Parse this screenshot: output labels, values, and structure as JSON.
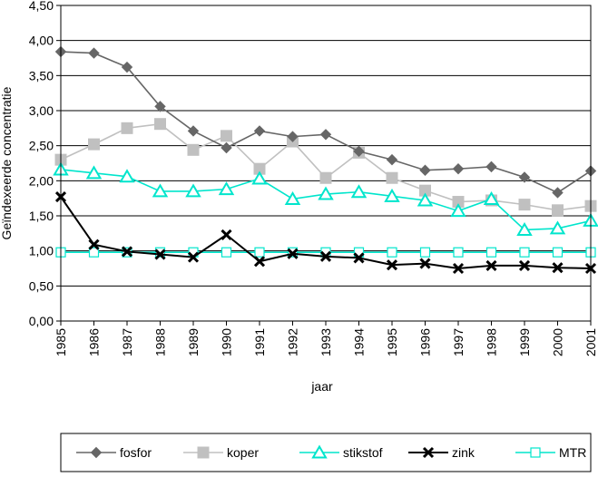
{
  "chart_data": {
    "type": "line",
    "title": "",
    "xlabel": "jaar",
    "ylabel": "Geïndexeerde concentratie",
    "ylim": [
      0,
      4.5
    ],
    "yticks": [
      "0,00",
      "0,50",
      "1,00",
      "1,50",
      "2,00",
      "2,50",
      "3,00",
      "3,50",
      "4,00",
      "4,50"
    ],
    "grid": "horizontal",
    "legend_position": "bottom",
    "categories": [
      "1985",
      "1986",
      "1987",
      "1988",
      "1989",
      "1990",
      "1991",
      "1992",
      "1993",
      "1994",
      "1995",
      "1996",
      "1997",
      "1998",
      "1999",
      "2000",
      "2001"
    ],
    "series": [
      {
        "name": "fosfor",
        "color": "#666666",
        "marker": "diamond",
        "values": [
          3.84,
          3.82,
          3.62,
          3.06,
          2.71,
          2.47,
          2.71,
          2.63,
          2.66,
          2.42,
          2.3,
          2.15,
          2.17,
          2.2,
          2.05,
          1.83,
          2.14
        ]
      },
      {
        "name": "koper",
        "color": "#c0c0c0",
        "marker": "square",
        "values": [
          2.3,
          2.52,
          2.75,
          2.81,
          2.44,
          2.64,
          2.17,
          2.56,
          2.04,
          2.4,
          2.04,
          1.86,
          1.7,
          1.72,
          1.66,
          1.58,
          1.64
        ]
      },
      {
        "name": "stikstof",
        "color": "#00e5cc",
        "marker": "triangle",
        "values": [
          2.16,
          2.11,
          2.06,
          1.85,
          1.85,
          1.88,
          2.03,
          1.74,
          1.81,
          1.84,
          1.78,
          1.72,
          1.57,
          1.74,
          1.3,
          1.32,
          1.43
        ]
      },
      {
        "name": "zink",
        "color": "#000000",
        "marker": "x",
        "values": [
          1.77,
          1.09,
          0.99,
          0.95,
          0.91,
          1.23,
          0.85,
          0.96,
          0.92,
          0.9,
          0.8,
          0.82,
          0.75,
          0.79,
          0.79,
          0.76,
          0.75
        ]
      },
      {
        "name": "MTR",
        "color": "#00e5cc",
        "marker": "open-square",
        "values": [
          0.98,
          0.98,
          0.98,
          0.98,
          0.98,
          0.98,
          0.98,
          0.98,
          0.98,
          0.98,
          0.98,
          0.98,
          0.98,
          0.98,
          0.98,
          0.98,
          0.98
        ]
      }
    ]
  }
}
